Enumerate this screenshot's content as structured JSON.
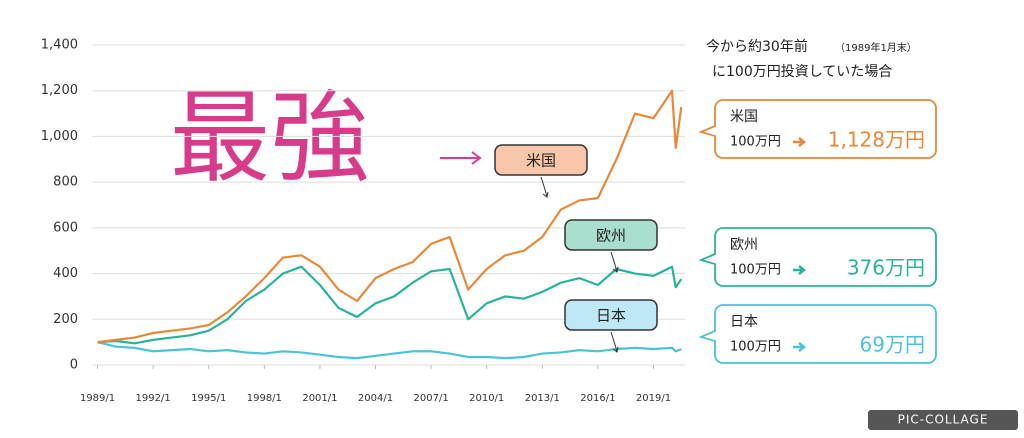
{
  "chart_data": {
    "type": "line",
    "big_text": "最強",
    "subtitle": [
      "今から約30年前",
      "（1989年1月末）",
      "に100万円投資していた場合"
    ],
    "x": [
      1989,
      1990,
      1991,
      1992,
      1993,
      1994,
      1995,
      1996,
      1997,
      1998,
      1999,
      2000,
      2001,
      2002,
      2003,
      2004,
      2005,
      2006,
      2007,
      2008,
      2009,
      2010,
      2011,
      2012,
      2013,
      2014,
      2015,
      2016,
      2017,
      2018,
      2019,
      2020,
      2020.2,
      2020.5
    ],
    "xlim": [
      1988.7,
      2020.7
    ],
    "xticks": [
      {
        "value": 1989,
        "label": "1989/1"
      },
      {
        "value": 1992,
        "label": "1992/1"
      },
      {
        "value": 1995,
        "label": "1995/1"
      },
      {
        "value": 1998,
        "label": "1998/1"
      },
      {
        "value": 2001,
        "label": "2001/1"
      },
      {
        "value": 2004,
        "label": "2004/1"
      },
      {
        "value": 2007,
        "label": "2007/1"
      },
      {
        "value": 2010,
        "label": "2010/1"
      },
      {
        "value": 2013,
        "label": "2013/1"
      },
      {
        "value": 2016,
        "label": "2016/1"
      },
      {
        "value": 2019,
        "label": "2019/1"
      }
    ],
    "ylim": [
      0,
      1400
    ],
    "yticks": [
      0,
      200,
      400,
      600,
      800,
      {
        "value": 1000,
        "label": "1,000"
      },
      {
        "value": 1200,
        "label": "1,200"
      },
      {
        "value": 1400,
        "label": "1,400"
      }
    ],
    "grid": true,
    "series": [
      {
        "name": "米国",
        "color": "#e8883a",
        "box_fill": "#f8c6a8",
        "values": [
          100,
          110,
          120,
          140,
          150,
          160,
          175,
          230,
          300,
          380,
          470,
          480,
          430,
          330,
          280,
          380,
          420,
          450,
          530,
          560,
          330,
          420,
          480,
          500,
          560,
          680,
          720,
          730,
          900,
          1100,
          1080,
          1200,
          950,
          1128
        ],
        "start": "100万円",
        "end": "1,128万円"
      },
      {
        "name": "欧州",
        "color": "#2bb39a",
        "box_fill": "#a9dfcf",
        "values": [
          100,
          105,
          95,
          110,
          120,
          130,
          150,
          200,
          280,
          330,
          400,
          430,
          350,
          250,
          210,
          270,
          300,
          360,
          410,
          420,
          200,
          270,
          300,
          290,
          320,
          360,
          380,
          350,
          420,
          400,
          390,
          430,
          340,
          376
        ],
        "start": "100万円",
        "end": "376万円"
      },
      {
        "name": "日本",
        "color": "#4cc3d4",
        "box_fill": "#bfe8f6",
        "values": [
          100,
          80,
          75,
          60,
          65,
          70,
          60,
          65,
          55,
          50,
          60,
          55,
          45,
          35,
          30,
          40,
          50,
          60,
          60,
          50,
          35,
          35,
          30,
          35,
          50,
          55,
          65,
          60,
          70,
          75,
          70,
          75,
          60,
          69
        ],
        "start": "100万円",
        "end": "69万円"
      }
    ],
    "watermark": "PIC-COLLAGE"
  }
}
